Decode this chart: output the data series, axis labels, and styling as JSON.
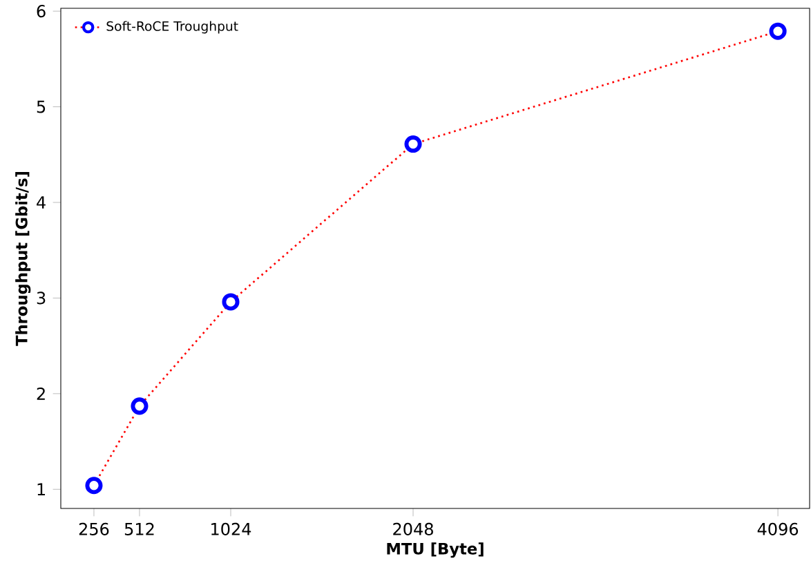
{
  "chart_data": {
    "type": "line",
    "xlabel": "MTU [Byte]",
    "ylabel": "Throughput [Gbit/s]",
    "xlim": [
      70,
      4274
    ],
    "ylim": [
      0.8,
      6.03
    ],
    "xticks": [
      256,
      512,
      1024,
      2048,
      4096
    ],
    "yticks": [
      1,
      2,
      3,
      4,
      5,
      6
    ],
    "series": [
      {
        "name": "Soft-RoCE Troughput",
        "type": "scatter",
        "color": "#0000ff",
        "marker": "circle",
        "x": [
          256,
          512,
          1024,
          2048,
          4096
        ],
        "values": [
          1.04,
          1.87,
          2.96,
          4.61,
          5.79
        ]
      },
      {
        "color": "#ff0000",
        "line_style": "dotted",
        "x": [
          256,
          512,
          1024,
          2048,
          4096
        ],
        "values": [
          1.04,
          1.87,
          2.96,
          4.61,
          5.79
        ]
      }
    ],
    "legend": "top left",
    "grid": false
  }
}
